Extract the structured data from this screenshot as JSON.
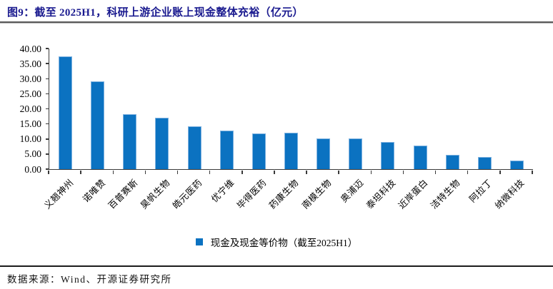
{
  "figure": {
    "title": "图9：截至 2025H1，科研上游企业账上现金整体充裕（亿元）",
    "source": "数据来源：Wind、开源证券研究所"
  },
  "colors": {
    "bar_fill": "#0b72c1",
    "bar_edge": "#7fb2e0",
    "title_text": "#1a1a8f",
    "axis": "#3a3a3a"
  },
  "chart_data": {
    "type": "bar",
    "title": "截至 2025H1，科研上游企业账上现金整体充裕（亿元）",
    "categories": [
      "义翘神州",
      "诺唯赞",
      "百普赛斯",
      "昊帆生物",
      "皓元医药",
      "优宁维",
      "毕得医药",
      "药康生物",
      "南模生物",
      "奥浦迈",
      "泰坦科技",
      "近岸蛋白",
      "洁特生物",
      "阿拉丁",
      "纳微科技"
    ],
    "values": [
      37.3,
      29.2,
      18.3,
      17.0,
      14.2,
      12.9,
      11.9,
      12.0,
      10.1,
      10.1,
      9.0,
      7.9,
      4.7,
      4.0,
      2.8
    ],
    "xlabel": "",
    "ylabel": "",
    "ylim": [
      0,
      40
    ],
    "ytick_step": 5,
    "ytick_labels": [
      "0.00",
      "5.00",
      "10.00",
      "15.00",
      "20.00",
      "25.00",
      "30.00",
      "35.00",
      "40.00"
    ],
    "grid": false,
    "legend": [
      "现金及现金等价物（截至2025H1）"
    ],
    "legend_position": "bottom"
  }
}
